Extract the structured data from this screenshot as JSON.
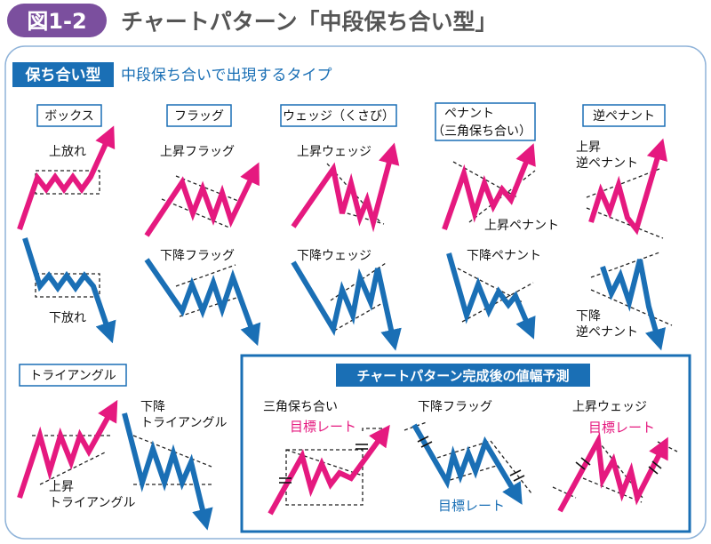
{
  "header": {
    "badge": "図1-2",
    "title": "チャートパターン「中段保ち合い型」"
  },
  "section": {
    "tag": "保ち合い型",
    "subtitle": "中段保ち合いで出現するタイプ"
  },
  "patterns": {
    "box": {
      "label": "ボックス",
      "up": "上放れ",
      "down": "下放れ"
    },
    "flag": {
      "label": "フラッグ",
      "up": "上昇フラッグ",
      "down": "下降フラッグ"
    },
    "wedge": {
      "label": "ウェッジ（くさび）",
      "up": "上昇ウェッジ",
      "down": "下降ウェッジ"
    },
    "pennant": {
      "label1": "ペナント",
      "label2": "（三角保ち合い）",
      "up": "上昇ペナント",
      "down": "下降ペナント"
    },
    "reverse_pennant": {
      "label": "逆ペナント",
      "up1": "上昇",
      "up2": "逆ペナント",
      "down1": "下降",
      "down2": "逆ペナント"
    },
    "triangle": {
      "label": "トライアングル",
      "up1": "上昇",
      "up2": "トライアングル",
      "down1": "下降",
      "down2": "トライアングル"
    }
  },
  "projection": {
    "title": "チャートパターン完成後の値幅予測",
    "triangle": "三角保ち合い",
    "flag": "下降フラッグ",
    "wedge": "上昇ウェッジ",
    "target": "目標レート"
  },
  "colors": {
    "up": "#e5197f",
    "down": "#1a6fb5",
    "badge": "#7b4f9e"
  }
}
